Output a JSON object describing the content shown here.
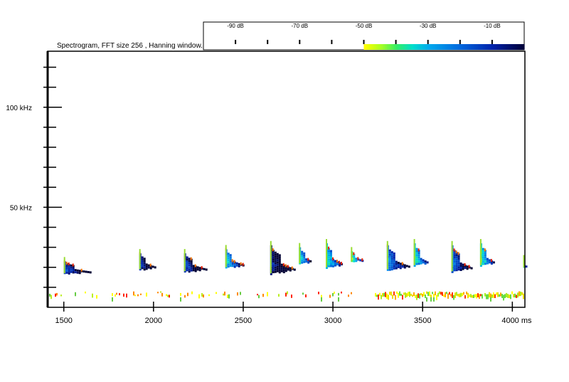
{
  "chart_data": {
    "type": "heatmap",
    "title": "Spectrogram, FFT size 256 , Hanning window.",
    "xlim": [
      1410,
      4070
    ],
    "ylim": [
      0,
      128
    ],
    "x_ticks": [
      1500,
      2000,
      2500,
      3000,
      3500,
      4000
    ],
    "x_tick_labels": [
      "1500",
      "2000",
      "2500",
      "3000",
      "3500",
      "4000 ms"
    ],
    "y_ticks": [
      50,
      100
    ],
    "y_tick_labels": [
      "50 kHz",
      "100 kHz"
    ],
    "y_minor_step": 10,
    "colorbar": {
      "ticks": [
        -90,
        -70,
        -50,
        -30,
        -10
      ],
      "tick_labels": [
        "-90 dB",
        "-70 dB",
        "-50 dB",
        "-30 dB",
        "-10 dB"
      ],
      "range_db": [
        -100,
        0
      ],
      "visible_from_db": -50,
      "stops": [
        {
          "db": -50,
          "color": "#ffff00"
        },
        {
          "db": -45,
          "color": "#aaff22"
        },
        {
          "db": -40,
          "color": "#33ee66"
        },
        {
          "db": -35,
          "color": "#00ddcc"
        },
        {
          "db": -30,
          "color": "#00aaee"
        },
        {
          "db": -20,
          "color": "#0066dd"
        },
        {
          "db": -10,
          "color": "#0022aa"
        },
        {
          "db": 0,
          "color": "#000033"
        }
      ]
    },
    "calls": [
      {
        "t": 1500,
        "f_top": 23,
        "f_bottom": 17,
        "dur": 150,
        "peak_db": -20,
        "kind": "hook"
      },
      {
        "t": 1920,
        "f_top": 27,
        "f_bottom": 19,
        "dur": 95,
        "peak_db": -15,
        "kind": "hook"
      },
      {
        "t": 2170,
        "f_top": 27,
        "f_bottom": 18,
        "dur": 120,
        "peak_db": -18,
        "kind": "hook"
      },
      {
        "t": 2400,
        "f_top": 29,
        "f_bottom": 20,
        "dur": 100,
        "peak_db": -35,
        "kind": "hook"
      },
      {
        "t": 2650,
        "f_top": 31,
        "f_bottom": 17,
        "dur": 140,
        "peak_db": -12,
        "kind": "hook"
      },
      {
        "t": 2810,
        "f_top": 30,
        "f_bottom": 22,
        "dur": 70,
        "peak_db": -38,
        "kind": "hook"
      },
      {
        "t": 2960,
        "f_top": 32,
        "f_bottom": 20,
        "dur": 90,
        "peak_db": -40,
        "kind": "hook"
      },
      {
        "t": 3100,
        "f_top": 28,
        "f_bottom": 23,
        "dur": 60,
        "peak_db": -45,
        "kind": "hook"
      },
      {
        "t": 3300,
        "f_top": 31,
        "f_bottom": 19,
        "dur": 120,
        "peak_db": -28,
        "kind": "hook"
      },
      {
        "t": 3450,
        "f_top": 32,
        "f_bottom": 21,
        "dur": 80,
        "peak_db": -40,
        "kind": "hook"
      },
      {
        "t": 3660,
        "f_top": 31,
        "f_bottom": 18,
        "dur": 110,
        "peak_db": -25,
        "kind": "hook"
      },
      {
        "t": 3820,
        "f_top": 32,
        "f_bottom": 21,
        "dur": 80,
        "peak_db": -42,
        "kind": "hook"
      },
      {
        "t": 4060,
        "f_top": 24,
        "f_bottom": 20,
        "dur": 20,
        "peak_db": -45,
        "kind": "hook"
      }
    ],
    "noise_band": {
      "f_low": 5,
      "f_high": 8,
      "t_start": 1410,
      "t_end": 4070
    },
    "dense_noise_segments": [
      [
        3240,
        3830
      ],
      [
        3840,
        4070
      ]
    ]
  }
}
